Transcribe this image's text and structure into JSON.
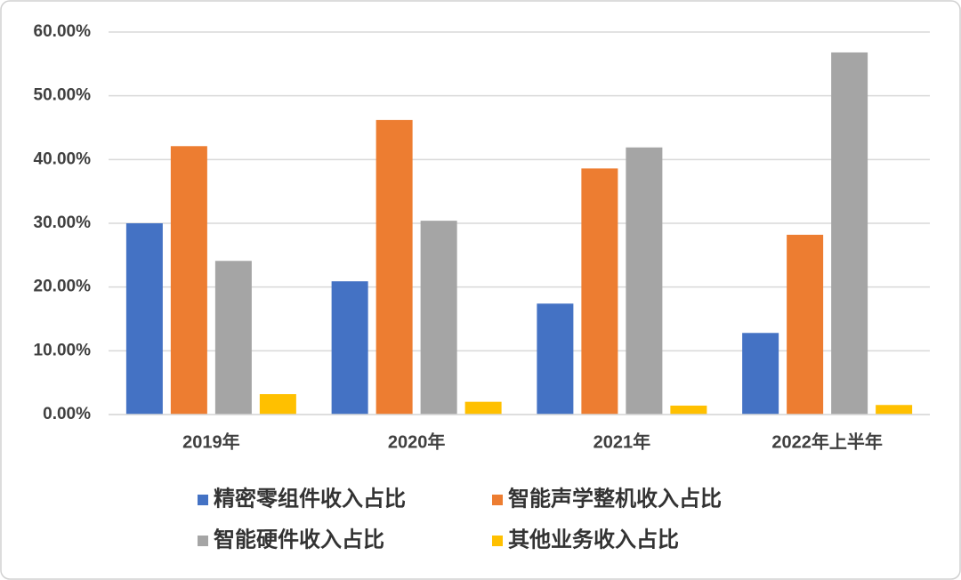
{
  "chart_data": {
    "type": "bar",
    "categories": [
      "2019年",
      "2020年",
      "2021年",
      "2022年上半年"
    ],
    "series": [
      {
        "name": "精密零组件收入占比",
        "color": "#4472c4",
        "values": [
          30.0,
          20.9,
          17.4,
          12.8
        ]
      },
      {
        "name": "智能声学整机收入占比",
        "color": "#ed7d31",
        "values": [
          42.1,
          46.2,
          38.6,
          28.2
        ]
      },
      {
        "name": "智能硬件收入占比",
        "color": "#a5a5a5",
        "values": [
          24.1,
          30.4,
          41.9,
          56.8
        ]
      },
      {
        "name": "其他业务收入占比",
        "color": "#ffc000",
        "values": [
          3.2,
          2.0,
          1.4,
          1.5
        ]
      }
    ],
    "ylim": [
      0,
      60
    ],
    "yticks": [
      {
        "value": 0,
        "label": "0.00%"
      },
      {
        "value": 10,
        "label": "10.00%"
      },
      {
        "value": 20,
        "label": "20.00%"
      },
      {
        "value": 30,
        "label": "30.00%"
      },
      {
        "value": 40,
        "label": "40.00%"
      },
      {
        "value": 50,
        "label": "50.00%"
      },
      {
        "value": 60,
        "label": "60.00%"
      }
    ],
    "grid": true,
    "legend": "bottom"
  }
}
